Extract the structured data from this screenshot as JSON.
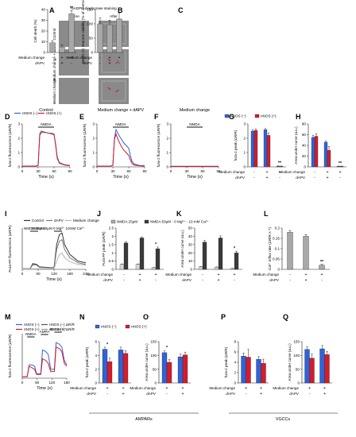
{
  "colors": {
    "nNOS_minus": "#2f63d8",
    "nNOS_plus": "#d41c2a",
    "bar_dark": "#3a3a3a",
    "bar_grey": "#a8a8a8",
    "bar_light": "#d8d8d8",
    "panelA_bg": "#8a8a8a",
    "panelA_box": "#c2c2c2"
  },
  "panel_letters": [
    "A",
    "B",
    "C",
    "D",
    "E",
    "F",
    "G",
    "H",
    "I",
    "J",
    "K",
    "L",
    "M",
    "N",
    "O",
    "P",
    "Q"
  ],
  "panelA": {
    "title": "NADPH-diaphorase staining",
    "col_before": "Before",
    "col_after": "After",
    "rows": [
      "Control",
      "Medium change + dAPV",
      "Medium change"
    ]
  },
  "row_labels": {
    "medium_change": "Medium change",
    "dapv": "dAPV"
  },
  "group_labels": {
    "ampars": "AMPARs",
    "vgccs": "VGCCs"
  },
  "chart_data": [
    {
      "panel": "B",
      "type": "bar",
      "ylabel": "Cell death (%)",
      "ylim": [
        0,
        40
      ],
      "yticks": [
        0,
        10,
        20,
        30,
        40
      ],
      "conditions": [
        [
          "-",
          "-"
        ],
        [
          "+",
          "+"
        ],
        [
          "+",
          "-"
        ]
      ],
      "values": [
        9,
        5,
        36
      ],
      "errors": [
        2,
        2,
        3
      ],
      "annotations": [
        {
          "bar": 2,
          "text": "**"
        }
      ]
    },
    {
      "panel": "C",
      "type": "bar",
      "ylabel": "nNOS (+) neurons viability (% of control)",
      "ylim": [
        0,
        150
      ],
      "yticks": [
        0,
        50,
        100,
        150
      ],
      "conditions": [
        [
          "-",
          "-"
        ],
        [
          "+",
          "+"
        ],
        [
          "+",
          "-"
        ]
      ],
      "values": [
        100,
        97,
        117
      ],
      "errors": [
        20,
        16,
        20
      ]
    },
    {
      "panel": "D",
      "type": "line",
      "title": "Control",
      "xlabel": "Time (s)",
      "ylabel": "fura-2 fluorescence (ΔR/R)",
      "xlim": [
        0,
        90
      ],
      "ylim": [
        0,
        3
      ],
      "xticks": [
        0,
        30,
        60,
        90
      ],
      "yticks": [
        0,
        1,
        2,
        3
      ],
      "stimulus": {
        "label": "NMDA",
        "start": 30,
        "end": 60
      },
      "legend": [
        "nNOS (−)",
        "nNOS (+)"
      ],
      "series": [
        {
          "name": "nNOS (−)",
          "x": [
            0,
            25,
            30,
            33,
            36,
            40,
            45,
            50,
            55,
            60,
            63,
            66,
            70,
            80,
            90
          ],
          "y": [
            0.05,
            0.05,
            0.1,
            2.2,
            2.4,
            2.4,
            2.4,
            2.35,
            2.3,
            2.25,
            1.6,
            0.7,
            0.3,
            0.15,
            0.1
          ]
        },
        {
          "name": "nNOS (+)",
          "x": [
            0,
            25,
            30,
            33,
            36,
            40,
            45,
            50,
            55,
            60,
            63,
            66,
            70,
            80,
            90
          ],
          "y": [
            0.05,
            0.05,
            0.1,
            2.3,
            2.5,
            2.45,
            2.4,
            2.35,
            2.35,
            2.3,
            1.5,
            0.6,
            0.25,
            0.12,
            0.08
          ]
        }
      ]
    },
    {
      "panel": "E",
      "type": "line",
      "title": "Medium change + dAPV",
      "xlabel": "Time (s)",
      "ylabel": "fura-2 fluorescence (ΔR/R)",
      "xlim": [
        0,
        90
      ],
      "ylim": [
        0,
        3
      ],
      "xticks": [
        0,
        30,
        60,
        90
      ],
      "yticks": [
        0,
        1,
        2,
        3
      ],
      "stimulus": {
        "label": "NMDA",
        "start": 30,
        "end": 60
      },
      "series": [
        {
          "name": "nNOS (−)",
          "x": [
            0,
            25,
            30,
            33,
            36,
            40,
            45,
            50,
            55,
            60,
            63,
            66,
            70,
            80,
            90
          ],
          "y": [
            0.05,
            0.05,
            0.1,
            2.0,
            2.6,
            2.3,
            2.0,
            1.7,
            1.5,
            1.3,
            0.8,
            0.4,
            0.2,
            0.1,
            0.08
          ]
        },
        {
          "name": "nNOS (+)",
          "x": [
            0,
            25,
            30,
            33,
            36,
            40,
            45,
            50,
            55,
            60,
            63,
            66,
            70,
            80,
            90
          ],
          "y": [
            0.05,
            0.05,
            0.1,
            1.9,
            2.3,
            1.9,
            1.5,
            1.2,
            1.0,
            0.8,
            0.5,
            0.25,
            0.12,
            0.08,
            0.05
          ]
        }
      ]
    },
    {
      "panel": "F",
      "type": "line",
      "title": "Medium change",
      "xlabel": "Time (s)",
      "ylabel": "fura-2 fluorescence (ΔR/R)",
      "xlim": [
        0,
        90
      ],
      "ylim": [
        0,
        3
      ],
      "xticks": [
        0,
        30,
        60,
        90
      ],
      "yticks": [
        0,
        1,
        2,
        3
      ],
      "stimulus": {
        "label": "NMDA",
        "start": 30,
        "end": 60
      },
      "series": [
        {
          "name": "nNOS (−)",
          "x": [
            0,
            90
          ],
          "y": [
            0.04,
            0.04
          ]
        },
        {
          "name": "nNOS (+)",
          "x": [
            0,
            90
          ],
          "y": [
            0.03,
            0.03
          ]
        }
      ]
    },
    {
      "panel": "G",
      "type": "bar",
      "ylabel": "fura-2 peak (ΔR/R)",
      "ylim": [
        0,
        3
      ],
      "yticks": [
        0,
        1,
        2,
        3
      ],
      "legend": [
        "nNOS (−)",
        "nNOS (+)"
      ],
      "conditions": [
        [
          "-",
          "-"
        ],
        [
          "+",
          "+"
        ],
        [
          "+",
          "-"
        ]
      ],
      "series": [
        {
          "name": "nNOS (−)",
          "values": [
            2.5,
            2.6,
            0.05
          ],
          "errors": [
            0.1,
            0.08,
            0.02
          ]
        },
        {
          "name": "nNOS (+)",
          "values": [
            2.55,
            2.2,
            0.04
          ],
          "errors": [
            0.1,
            0.15,
            0.02
          ]
        }
      ],
      "annotations": [
        {
          "group": 2,
          "text": "**"
        }
      ]
    },
    {
      "panel": "H",
      "type": "bar",
      "ylabel": "Area under curve (a.u.)",
      "ylim": [
        0,
        80
      ],
      "yticks": [
        0,
        20,
        40,
        60,
        80
      ],
      "conditions": [
        [
          "-",
          "-"
        ],
        [
          "+",
          "+"
        ],
        [
          "+",
          "-"
        ]
      ],
      "series": [
        {
          "name": "nNOS (−)",
          "values": [
            55,
            46,
            1
          ],
          "errors": [
            4,
            2,
            0.5
          ]
        },
        {
          "name": "nNOS (+)",
          "values": [
            57,
            31,
            1
          ],
          "errors": [
            5,
            7,
            0.5
          ]
        }
      ],
      "annotations": [
        {
          "group": 2,
          "text": "**"
        }
      ]
    },
    {
      "panel": "I",
      "type": "line",
      "xlabel": "Time (s)",
      "ylabel": "Fura-FF fluorescence (ΔR/R)",
      "xlim": [
        0,
        240
      ],
      "ylim": [
        0,
        2.5
      ],
      "xticks": [
        0,
        60,
        120,
        180,
        240
      ],
      "legend": [
        "Control",
        "dAPV",
        "Medium change"
      ],
      "stimuli": [
        {
          "label": "NMDA 25μM",
          "start": 30,
          "end": 60
        },
        {
          "label": "NMDA 50μM 0 Mg²⁺ 10mM Ca²⁺",
          "start": 120,
          "end": 150
        }
      ],
      "series": [
        {
          "name": "Control",
          "x": [
            0,
            30,
            40,
            55,
            65,
            110,
            120,
            130,
            140,
            150,
            160,
            180,
            210,
            240
          ],
          "y": [
            0.05,
            0.05,
            0.35,
            0.3,
            0.15,
            0.1,
            0.1,
            1.5,
            2.1,
            2.2,
            1.5,
            0.9,
            0.5,
            0.4
          ]
        },
        {
          "name": "dAPV",
          "x": [
            0,
            30,
            40,
            55,
            65,
            110,
            120,
            130,
            140,
            150,
            160,
            180,
            210,
            240
          ],
          "y": [
            0.05,
            0.05,
            0.28,
            0.25,
            0.12,
            0.08,
            0.08,
            1.2,
            1.7,
            1.8,
            1.2,
            0.7,
            0.4,
            0.3
          ]
        },
        {
          "name": "Medium change",
          "x": [
            0,
            30,
            40,
            55,
            65,
            110,
            120,
            130,
            140,
            150,
            160,
            180,
            210,
            240
          ],
          "y": [
            0.03,
            0.03,
            0.04,
            0.04,
            0.04,
            0.03,
            0.03,
            0.5,
            0.9,
            1.0,
            0.7,
            0.45,
            0.3,
            0.25
          ]
        }
      ]
    },
    {
      "panel": "J",
      "type": "bar",
      "ylabel": "Fura-FF peak (ΔR/R)",
      "ylim": [
        0,
        2.5
      ],
      "yticks": [
        0.0,
        0.5,
        1.0,
        1.5,
        2.0,
        2.5
      ],
      "legend": [
        "NMDA 25μM",
        "NMDA 50μM - 0 Mg²⁺ - 10 mM Ca²⁺"
      ],
      "conditions": [
        [
          "-",
          "-"
        ],
        [
          "+",
          "+"
        ],
        [
          "+",
          "-"
        ]
      ],
      "series": [
        {
          "name": "NMDA 25μM",
          "values": [
            0.3,
            0.3,
            0.1
          ],
          "errors": [
            0.03,
            0.03,
            0.02
          ]
        },
        {
          "name": "NMDA 50μM - 0 Mg²⁺ - 10 mM Ca²⁺",
          "values": [
            1.6,
            1.9,
            1.25
          ],
          "errors": [
            0.08,
            0.07,
            0.1
          ]
        }
      ],
      "annotations": [
        {
          "group": 2,
          "text": "*"
        }
      ]
    },
    {
      "panel": "K",
      "type": "bar",
      "ylabel": "Area under curve (a.u.)",
      "ylim": [
        0,
        50
      ],
      "yticks": [
        0,
        10,
        20,
        30,
        40,
        50
      ],
      "conditions": [
        [
          "-",
          "-"
        ],
        [
          "+",
          "+"
        ],
        [
          "+",
          "-"
        ]
      ],
      "series": [
        {
          "name": "NMDA 25μM",
          "values": [
            3,
            2.5,
            1
          ],
          "errors": [
            0.5,
            0.5,
            0.3
          ]
        },
        {
          "name": "NMDA 50μM - 0 Mg²⁺ - 10 mM Ca²⁺",
          "values": [
            33,
            38,
            20
          ],
          "errors": [
            2,
            2.5,
            2
          ]
        }
      ],
      "annotations": [
        {
          "group": 2,
          "text": "*"
        }
      ]
    },
    {
      "panel": "L",
      "type": "bar",
      "ylabel": "Ca²⁺ influx rate (ΔR/R·s⁻¹)",
      "ylim": [
        0,
        0.2
      ],
      "yticks": [
        0.0,
        0.05,
        0.1,
        0.15,
        0.2
      ],
      "conditions": [
        [
          "-",
          "-"
        ],
        [
          "+",
          "+"
        ],
        [
          "+",
          "-"
        ]
      ],
      "values": [
        0.18,
        0.16,
        0.02
      ],
      "errors": [
        0.008,
        0.008,
        0.004
      ],
      "annotations": [
        {
          "bar": 2,
          "text": "**"
        }
      ]
    },
    {
      "panel": "M",
      "type": "line",
      "xlabel": "Time (s)",
      "ylabel": "fura-2 fluorescence (ΔR/R)",
      "xlim": [
        0,
        180
      ],
      "ylim": [
        0,
        3
      ],
      "xticks": [
        0,
        60,
        120,
        180
      ],
      "legend": [
        "nNOS (−)",
        "nNOS (+)",
        "nNOS (−) ΔR/R",
        "nNOS (+) ΔR/R"
      ],
      "stimuli": [
        {
          "label": "NMDA",
          "start": 20,
          "end": 50
        },
        {
          "label": "AMPA",
          "start": 75,
          "end": 105
        },
        {
          "label": "60 mM K⁺",
          "start": 130,
          "end": 160
        }
      ],
      "series": [
        {
          "name": "nNOS (−)",
          "x": [
            0,
            20,
            28,
            40,
            50,
            58,
            75,
            82,
            95,
            105,
            115,
            130,
            137,
            150,
            160,
            170,
            180
          ],
          "y": [
            0.1,
            0.1,
            0.9,
            0.9,
            0.8,
            0.3,
            0.3,
            1.9,
            1.8,
            1.6,
            0.6,
            0.6,
            2.4,
            2.3,
            2.1,
            1.2,
            0.9
          ]
        },
        {
          "name": "nNOS (+)",
          "x": [
            0,
            20,
            28,
            40,
            50,
            58,
            75,
            82,
            95,
            105,
            115,
            130,
            137,
            150,
            160,
            170,
            180
          ],
          "y": [
            0.1,
            0.1,
            0.8,
            0.7,
            0.6,
            0.25,
            0.25,
            1.3,
            1.2,
            1.0,
            0.45,
            0.45,
            2.1,
            2.0,
            1.8,
            1.0,
            0.8
          ]
        }
      ]
    },
    {
      "panel": "N",
      "type": "bar",
      "ylabel": "fura-2 peak (ΔR/R)",
      "ylim": [
        0,
        6
      ],
      "yticks": [
        0,
        2,
        4,
        6
      ],
      "legend": [
        "nNOS (−)",
        "nNOS (+)"
      ],
      "conditions": [
        [
          "+",
          "-"
        ],
        [
          "+",
          "+"
        ]
      ],
      "series": [
        {
          "name": "nNOS (−)",
          "values": [
            4.9,
            4.8
          ],
          "errors": [
            0.3,
            0.4
          ]
        },
        {
          "name": "nNOS (+)",
          "values": [
            3.1,
            4.3
          ],
          "errors": [
            0.5,
            0.4
          ]
        }
      ],
      "annotations": [
        {
          "group": 0,
          "text": "*"
        }
      ]
    },
    {
      "panel": "O",
      "type": "bar",
      "ylabel": "Area under curve (a.u.)",
      "ylim": [
        0,
        150
      ],
      "yticks": [
        0,
        50,
        100,
        150
      ],
      "conditions": [
        [
          "+",
          "-"
        ],
        [
          "+",
          "+"
        ]
      ],
      "series": [
        {
          "name": "nNOS (−)",
          "values": [
            110,
            95
          ],
          "errors": [
            8,
            10
          ]
        },
        {
          "name": "nNOS (+)",
          "values": [
            75,
            102
          ],
          "errors": [
            10,
            10
          ]
        }
      ],
      "annotations": [
        {
          "group": 0,
          "text": "*"
        }
      ]
    },
    {
      "panel": "P",
      "type": "bar",
      "ylabel": "fura-2 peak (ΔR/R)",
      "ylim": [
        0,
        8
      ],
      "yticks": [
        0,
        2,
        4,
        6,
        8
      ],
      "conditions": [
        [
          "+",
          "-"
        ],
        [
          "+",
          "+"
        ]
      ],
      "series": [
        {
          "name": "nNOS (−)",
          "values": [
            5.2,
            4.6
          ],
          "errors": [
            0.6,
            0.5
          ]
        },
        {
          "name": "nNOS (+)",
          "values": [
            5.0,
            3.8
          ],
          "errors": [
            1.5,
            0.8
          ]
        }
      ]
    },
    {
      "panel": "Q",
      "type": "bar",
      "ylabel": "Area under curve (a.u.)",
      "ylim": [
        0,
        150
      ],
      "yticks": [
        0,
        50,
        100,
        150
      ],
      "conditions": [
        [
          "+",
          "-"
        ],
        [
          "+",
          "+"
        ]
      ],
      "series": [
        {
          "name": "nNOS (−)",
          "values": [
            122,
            124
          ],
          "errors": [
            10,
            12
          ]
        },
        {
          "name": "nNOS (+)",
          "values": [
            90,
            103
          ],
          "errors": [
            15,
            12
          ]
        }
      ]
    }
  ]
}
